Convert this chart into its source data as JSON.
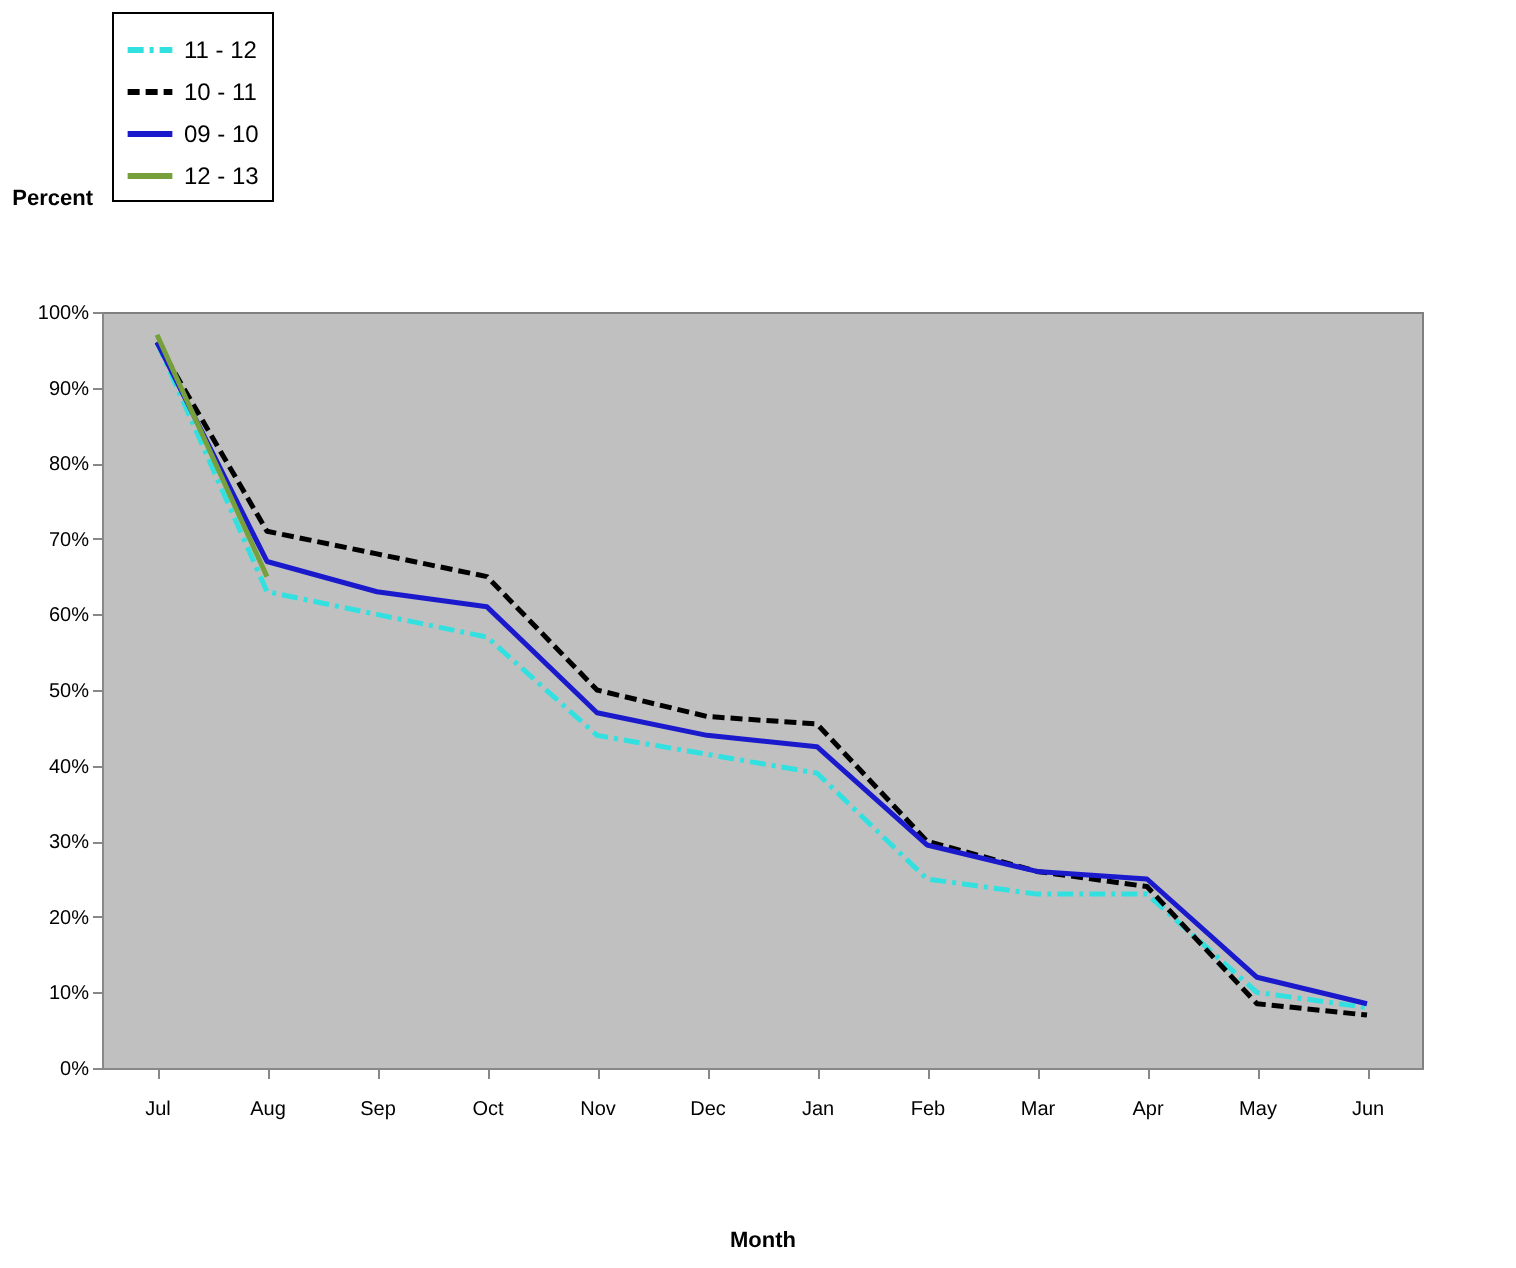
{
  "chart_data": {
    "type": "line",
    "xlabel": "Month",
    "ylabel": "Percent",
    "categories": [
      "Jul",
      "Aug",
      "Sep",
      "Oct",
      "Nov",
      "Dec",
      "Jan",
      "Feb",
      "Mar",
      "Apr",
      "May",
      "Jun"
    ],
    "ylim": [
      0,
      100
    ],
    "yticks": [
      {
        "value": 0,
        "label": "0%"
      },
      {
        "value": 10,
        "label": "10%"
      },
      {
        "value": 20,
        "label": "20%"
      },
      {
        "value": 30,
        "label": "30%"
      },
      {
        "value": 40,
        "label": "40%"
      },
      {
        "value": 50,
        "label": "50%"
      },
      {
        "value": 60,
        "label": "60%"
      },
      {
        "value": 70,
        "label": "70%"
      },
      {
        "value": 80,
        "label": "80%"
      },
      {
        "value": 90,
        "label": "90%"
      },
      {
        "value": 100,
        "label": "100%"
      }
    ],
    "grid": false,
    "legend": "top left",
    "marker": "none",
    "series": [
      {
        "name": "11 - 12",
        "color": "#33e0e0",
        "line_style": "dashdot",
        "values": [
          96,
          63,
          60,
          57,
          44,
          41.5,
          39,
          25,
          23,
          23,
          10,
          8
        ]
      },
      {
        "name": "10 - 11",
        "color": "#000000",
        "line_style": "dashed",
        "values": [
          96,
          71,
          68,
          65,
          50,
          46.5,
          45.5,
          30,
          26,
          24,
          8.5,
          7
        ]
      },
      {
        "name": "09 - 10",
        "color": "#1a1acc",
        "line_style": "solid",
        "values": [
          96,
          67,
          63,
          61,
          47,
          44,
          42.5,
          29.5,
          26,
          25,
          12,
          8.5
        ]
      },
      {
        "name": "12 - 13",
        "color": "#77a03c",
        "line_style": "solid",
        "values": [
          97,
          65,
          null,
          null,
          null,
          null,
          null,
          null,
          null,
          null,
          null,
          null
        ]
      }
    ]
  }
}
